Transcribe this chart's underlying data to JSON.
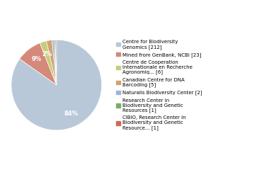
{
  "labels": [
    "Centre for Biodiversity\nGenomics [212]",
    "Mined from GenBank, NCBI [23]",
    "Centre de Cooperation\nInternationale en Recherche\nAgronomiq... [6]",
    "Canadian Centre for DNA\nBarcoding [5]",
    "Naturalis Biodiversity Center [2]",
    "Research Center in\nBiodiversity and Genetic\nResources [1]",
    "CIBIO, Research Center in\nBiodiversity and Genetic\nResource... [1]"
  ],
  "values": [
    212,
    23,
    6,
    5,
    2,
    1,
    1
  ],
  "colors": [
    "#b8c8d8",
    "#d4897a",
    "#c8cc7a",
    "#d4a070",
    "#9ab8d4",
    "#7aad6a",
    "#d06858"
  ],
  "pct_labels": [
    "84%",
    "9%",
    "2%",
    "",
    "",
    "",
    ""
  ],
  "startangle": 90,
  "background_color": "#ffffff"
}
